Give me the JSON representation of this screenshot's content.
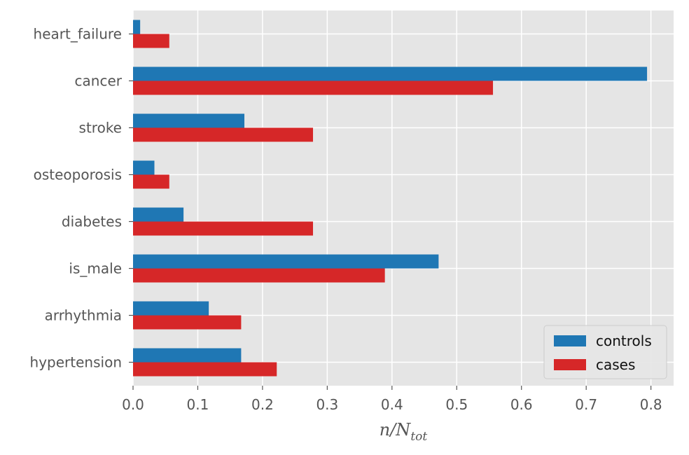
{
  "chart_data": {
    "type": "bar",
    "orientation": "horizontal",
    "categories": [
      "hypertension",
      "arrhythmia",
      "is_male",
      "diabetes",
      "osteoporosis",
      "stroke",
      "cancer",
      "heart_failure"
    ],
    "series": [
      {
        "name": "controls",
        "color": "#1f77b4",
        "values": [
          0.167,
          0.117,
          0.472,
          0.078,
          0.033,
          0.172,
          0.794,
          0.011
        ]
      },
      {
        "name": "cases",
        "color": "#d62728",
        "values": [
          0.222,
          0.167,
          0.389,
          0.278,
          0.056,
          0.278,
          0.556,
          0.056
        ]
      }
    ],
    "xlabel": {
      "base": "n/N",
      "sub": "tot"
    },
    "ylabel": "",
    "xlim": [
      0,
      0.835
    ],
    "xticks": [
      0.0,
      0.1,
      0.2,
      0.3,
      0.4,
      0.5,
      0.6,
      0.7,
      0.8
    ],
    "xtick_labels": [
      "0.0",
      "0.1",
      "0.2",
      "0.3",
      "0.4",
      "0.5",
      "0.6",
      "0.7",
      "0.8"
    ],
    "grid": true,
    "legend_position": "lower-right",
    "style": {
      "plot_background": "#e5e5e5",
      "grid_color": "#ffffff"
    }
  }
}
